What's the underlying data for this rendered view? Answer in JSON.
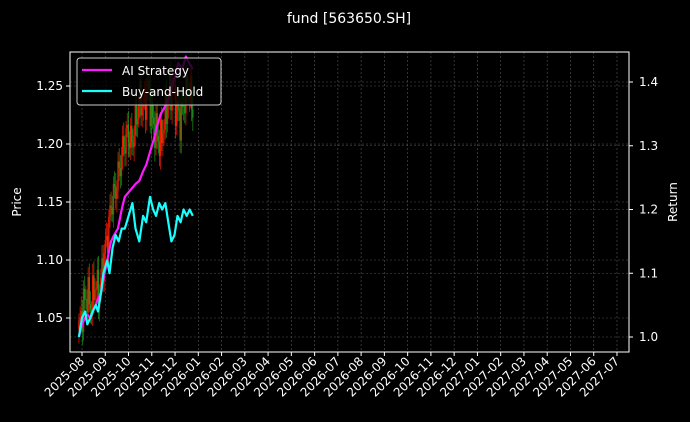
{
  "title": "fund [563650.SH]",
  "colors": {
    "background": "#000000",
    "ai_strategy": "#ff19ff",
    "buy_and_hold": "#19ffff",
    "candle_up": "#ff1a00",
    "candle_down": "#1f9a1f",
    "grid": "#555555",
    "axis": "#ffffff"
  },
  "chart_data": {
    "type": "line",
    "title": "fund [563650.SH]",
    "xlabel": "",
    "ylabel_left": "Price",
    "ylabel_right": "Return",
    "x_tick_labels": [
      "2025-08",
      "2025-09",
      "2025-10",
      "2025-11",
      "2025-12",
      "2026-01",
      "2026-02",
      "2026-03",
      "2026-04",
      "2026-05",
      "2026-06",
      "2026-07",
      "2026-08",
      "2026-09",
      "2026-10",
      "2026-11",
      "2026-12",
      "2027-01",
      "2027-02",
      "2027-03",
      "2027-04",
      "2027-05",
      "2027-06",
      "2027-07"
    ],
    "ylim_left": [
      1.025,
      1.28
    ],
    "yticks_left": [
      1.05,
      1.1,
      1.15,
      1.2,
      1.25
    ],
    "ylim_right": [
      0.98,
      1.445
    ],
    "yticks_right": [
      1.0,
      1.1,
      1.2,
      1.3,
      1.4
    ],
    "grid": true,
    "legend_position": "upper left",
    "legend": [
      "AI Strategy",
      "Buy-and-Hold"
    ],
    "series": [
      {
        "name": "AI Strategy",
        "axis": "right",
        "x": [
          "2025-07-28",
          "2025-08-01",
          "2025-08-05",
          "2025-08-08",
          "2025-08-12",
          "2025-08-15",
          "2025-08-19",
          "2025-08-22",
          "2025-08-26",
          "2025-08-29",
          "2025-09-03",
          "2025-09-08",
          "2025-09-12",
          "2025-09-17",
          "2025-09-22",
          "2025-09-26",
          "2025-10-10",
          "2025-10-15",
          "2025-10-20",
          "2025-10-24",
          "2025-10-29",
          "2025-11-03",
          "2025-11-07",
          "2025-11-12",
          "2025-11-17",
          "2025-11-21",
          "2025-11-26",
          "2025-12-01",
          "2025-12-05",
          "2025-12-10",
          "2025-12-15",
          "2025-12-19",
          "2025-12-24"
        ],
        "values": [
          1.0,
          1.02,
          1.03,
          1.035,
          1.03,
          1.04,
          1.05,
          1.06,
          1.07,
          1.09,
          1.12,
          1.15,
          1.16,
          1.17,
          1.2,
          1.22,
          1.24,
          1.245,
          1.26,
          1.27,
          1.29,
          1.31,
          1.33,
          1.35,
          1.36,
          1.37,
          1.39,
          1.41,
          1.43,
          1.42,
          1.44,
          1.43,
          1.42
        ]
      },
      {
        "name": "Buy-and-Hold",
        "axis": "right",
        "x": [
          "2025-07-28",
          "2025-08-01",
          "2025-08-05",
          "2025-08-08",
          "2025-08-12",
          "2025-08-15",
          "2025-08-19",
          "2025-08-22",
          "2025-08-26",
          "2025-08-29",
          "2025-09-03",
          "2025-09-06",
          "2025-09-10",
          "2025-09-14",
          "2025-09-18",
          "2025-09-22",
          "2025-09-26",
          "2025-10-01",
          "2025-10-06",
          "2025-10-10",
          "2025-10-15",
          "2025-10-20",
          "2025-10-24",
          "2025-10-29",
          "2025-11-02",
          "2025-11-06",
          "2025-11-10",
          "2025-11-14",
          "2025-11-18",
          "2025-11-22",
          "2025-11-26",
          "2025-11-30",
          "2025-12-04",
          "2025-12-08",
          "2025-12-12",
          "2025-12-16",
          "2025-12-20",
          "2025-12-24"
        ],
        "values": [
          1.0,
          1.03,
          1.04,
          1.02,
          1.03,
          1.04,
          1.05,
          1.04,
          1.07,
          1.1,
          1.12,
          1.1,
          1.14,
          1.16,
          1.15,
          1.17,
          1.17,
          1.19,
          1.21,
          1.17,
          1.15,
          1.19,
          1.18,
          1.22,
          1.2,
          1.19,
          1.21,
          1.2,
          1.21,
          1.18,
          1.15,
          1.16,
          1.19,
          1.18,
          1.2,
          1.19,
          1.2,
          1.19
        ]
      }
    ],
    "candlestick": {
      "axis": "left",
      "note": "OHLC daily candles, red=up green=down, approx close path",
      "x_range": [
        "2025-07-28",
        "2025-12-24"
      ],
      "approx_close": [
        1.04,
        1.06,
        1.07,
        1.06,
        1.08,
        1.07,
        1.1,
        1.12,
        1.15,
        1.16,
        1.18,
        1.2,
        1.21,
        1.2,
        1.22,
        1.24,
        1.23,
        1.25,
        1.22,
        1.21,
        1.2,
        1.22,
        1.24,
        1.25,
        1.23,
        1.22,
        1.24,
        1.25,
        1.23
      ]
    }
  }
}
